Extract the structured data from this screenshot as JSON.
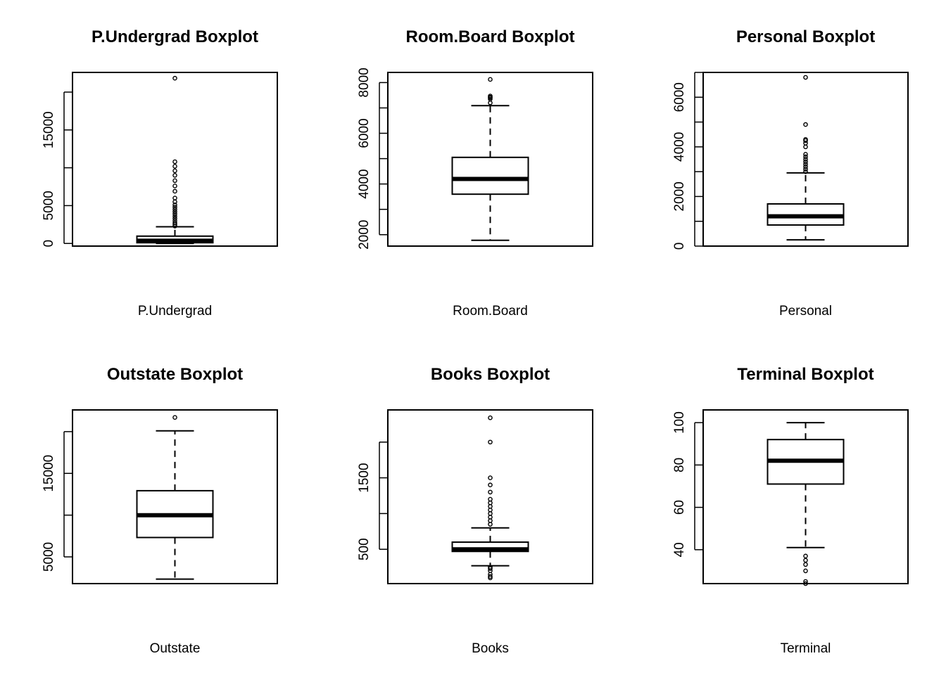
{
  "chart_data": [
    {
      "type": "box",
      "title": "P.Undergrad Boxplot",
      "xlabel": "P.Undergrad",
      "ylim": [
        -350,
        22600
      ],
      "yticks": [
        0,
        5000,
        10000,
        15000,
        20000
      ],
      "ytick_labels": [
        "0",
        "5000",
        "",
        "15000",
        ""
      ],
      "stats": {
        "min": 1,
        "q1": 95,
        "median": 353,
        "q3": 967,
        "max": 2200
      },
      "outliers": [
        2300,
        2500,
        2700,
        3000,
        3300,
        3600,
        3900,
        4200,
        4500,
        4800,
        5100,
        5500,
        6000,
        6900,
        7600,
        8300,
        9000,
        9600,
        10200,
        10800,
        21836
      ]
    },
    {
      "type": "box",
      "title": "Room.Board Boxplot",
      "xlabel": "Room.Board",
      "ylim": [
        1550,
        8400
      ],
      "yticks": [
        2000,
        3000,
        4000,
        5000,
        6000,
        7000,
        8000
      ],
      "ytick_labels": [
        "2000",
        "",
        "4000",
        "",
        "6000",
        "",
        "8000"
      ],
      "stats": {
        "min": 1780,
        "q1": 3597,
        "median": 4200,
        "q3": 5050,
        "max": 7090
      },
      "outliers": [
        7200,
        7350,
        7400,
        7425,
        7470,
        8124
      ]
    },
    {
      "type": "box",
      "title": "Personal Boxplot",
      "xlabel": "Personal",
      "ylim": [
        0,
        7000
      ],
      "yticks": [
        0,
        1000,
        2000,
        3000,
        4000,
        5000,
        6000,
        7000
      ],
      "ytick_labels": [
        "0",
        "",
        "2000",
        "",
        "4000",
        "",
        "6000",
        ""
      ],
      "stats": {
        "min": 250,
        "q1": 850,
        "median": 1200,
        "q3": 1700,
        "max": 2950
      },
      "outliers": [
        3000,
        3100,
        3200,
        3300,
        3400,
        3500,
        3600,
        3700,
        4000,
        4150,
        4250,
        4300,
        4900,
        6800
      ]
    },
    {
      "type": "box",
      "title": "Outstate Boxplot",
      "xlabel": "Outstate",
      "ylim": [
        1800,
        22600
      ],
      "yticks": [
        5000,
        10000,
        15000,
        20000
      ],
      "ytick_labels": [
        "5000",
        "",
        "15000",
        ""
      ],
      "stats": {
        "min": 2340,
        "q1": 7320,
        "median": 9990,
        "q3": 12925,
        "max": 20100
      },
      "outliers": [
        21700
      ]
    },
    {
      "type": "box",
      "title": "Books Boxplot",
      "xlabel": "Books",
      "ylim": [
        20,
        2450
      ],
      "yticks": [
        500,
        1000,
        1500,
        2000
      ],
      "ytick_labels": [
        "500",
        "",
        "1500",
        ""
      ],
      "stats": {
        "min": 270,
        "q1": 470,
        "median": 500,
        "q3": 600,
        "max": 800
      },
      "outliers": [
        100,
        120,
        150,
        200,
        230,
        250,
        850,
        900,
        950,
        1000,
        1050,
        1100,
        1150,
        1200,
        1300,
        1400,
        1500,
        2000,
        2340
      ]
    },
    {
      "type": "box",
      "title": "Terminal Boxplot",
      "xlabel": "Terminal",
      "ylim": [
        24,
        106
      ],
      "yticks": [
        40,
        60,
        80,
        100
      ],
      "ytick_labels": [
        "40",
        "60",
        "80",
        "100"
      ],
      "stats": {
        "min": 41,
        "q1": 71,
        "median": 82,
        "q3": 92,
        "max": 100
      },
      "outliers": [
        24,
        25,
        30,
        33,
        35,
        37
      ]
    }
  ]
}
